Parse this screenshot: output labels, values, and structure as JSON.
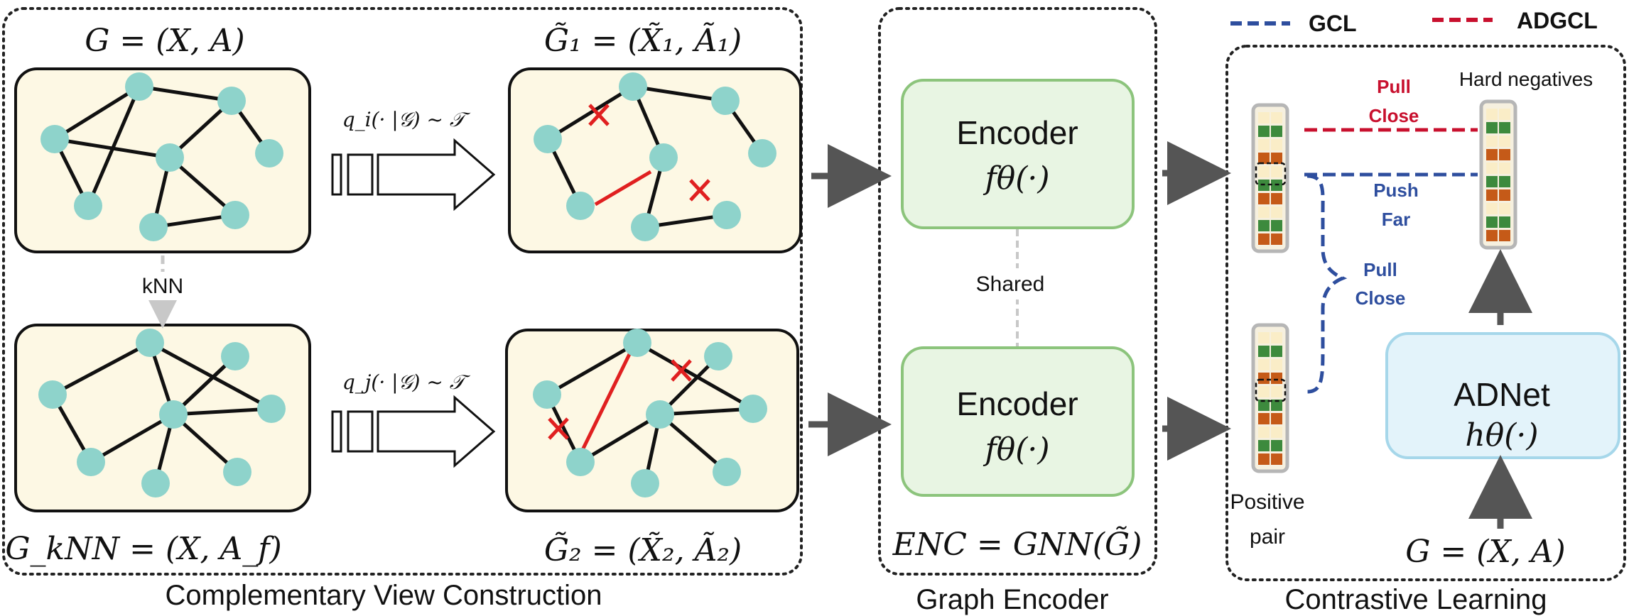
{
  "panels": {
    "view_construction": "Complementary View Construction",
    "graph_encoder": "Graph Encoder",
    "contrastive_learning": "Contrastive Learning"
  },
  "graphs": {
    "original": "G = (X, A)",
    "knn": "G_kNN = (X, A_f)",
    "view1": "G̃₁ = (X̃₁, Ã₁)",
    "view2": "G̃₂ = (X̃₂, Ã₂)"
  },
  "labels": {
    "knn_arrow": "kNN",
    "aug1": "q_i(· |𝒢) ~ 𝒯",
    "aug2": "q_j(· |𝒢) ~ 𝒯",
    "shared": "Shared",
    "enc_formula": "ENC = GNN(G̃)",
    "input_graph": "G = (X, A)",
    "hard_negatives": "Hard negatives",
    "positive_pair_line1": "Positive",
    "positive_pair_line2": "pair"
  },
  "encoders": [
    {
      "title": "Encoder",
      "func": "fθ(·)"
    },
    {
      "title": "Encoder",
      "func": "fθ(·)"
    }
  ],
  "adnet": {
    "title": "ADNet",
    "func": "hθ(·)"
  },
  "legend": [
    {
      "label": "GCL",
      "color": "#2e4e9e"
    },
    {
      "label": "ADGCL",
      "color": "#c8102e"
    }
  ],
  "annotations": {
    "pull_close_red_1": "Pull",
    "pull_close_red_2": "Close",
    "push_far_1": "Push",
    "push_far_2": "Far",
    "pull_close_blue_1": "Pull",
    "pull_close_blue_2": "Close"
  },
  "colors": {
    "node": "#8ed3cb",
    "graph_bg": "#fdf8e4",
    "encoder_bg": "#e8f5e3",
    "encoder_border": "#8cc47c",
    "adnet_bg": "#e3f3fa",
    "adnet_border": "#a6d7ea",
    "aug_edge": "#e02020",
    "cell_green": "#3d8a3d",
    "cell_orange": "#c55a18",
    "cell_empty": "#faedc7"
  }
}
